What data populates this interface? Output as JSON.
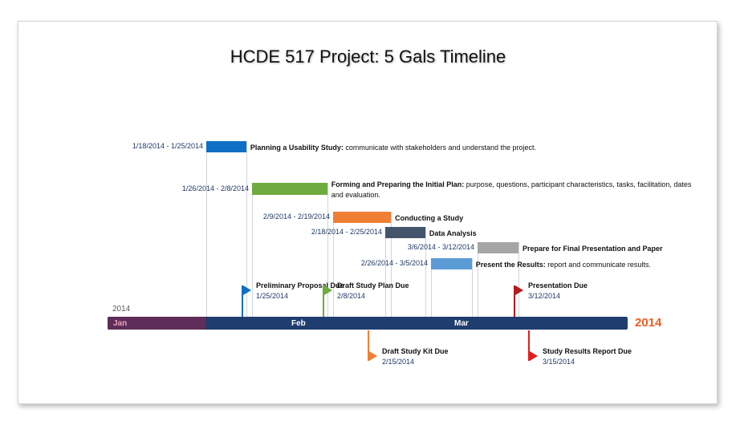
{
  "title": "HCDE 517 Project: 5 Gals Timeline",
  "year": "2014",
  "months": [
    "Jan",
    "Feb",
    "Mar"
  ],
  "colors": {
    "timeline": "#1f3d6e",
    "jan_segment": "#5e2e58",
    "year_accent": "#f05b1e"
  },
  "chart_data": {
    "type": "gantt",
    "x_axis": {
      "type": "date",
      "start": "2014-01-01",
      "end": "2014-03-31",
      "months": [
        "Jan",
        "Feb",
        "Mar"
      ]
    },
    "tasks": [
      {
        "dates": "1/18/2014 - 1/25/2014",
        "start": "2014-01-18",
        "end": "2014-01-25",
        "name": "Planning a Usability Study:",
        "desc": " communicate with stakeholders and understand the project.",
        "color": "#0f6fc6"
      },
      {
        "dates": "1/26/2014 - 2/8/2014",
        "start": "2014-01-26",
        "end": "2014-02-08",
        "name": "Forming and Preparing the Initial Plan:",
        "desc": " purpose, questions, participant characteristics, tasks, facilitation, dates and evaluation.",
        "color": "#6fab3e"
      },
      {
        "dates": "2/9/2014 - 2/19/2014",
        "start": "2014-02-09",
        "end": "2014-02-19",
        "name": "Conducting a Study",
        "desc": "",
        "color": "#f07f34"
      },
      {
        "dates": "2/18/2014 - 2/25/2014",
        "start": "2014-02-18",
        "end": "2014-02-25",
        "name": "Data Analysis",
        "desc": "",
        "color": "#44546a"
      },
      {
        "dates": "3/6/2014 - 3/12/2014",
        "start": "2014-03-06",
        "end": "2014-03-12",
        "name": "Prepare for Final Presentation and Paper",
        "desc": "",
        "color": "#a6a6a6"
      },
      {
        "dates": "2/26/2014 - 3/5/2014",
        "start": "2014-02-26",
        "end": "2014-03-05",
        "name": "Present the Results:",
        "desc": " report and communicate results.",
        "color": "#5b9bd5"
      }
    ],
    "milestones": [
      {
        "name": "Preliminary Proposal Due",
        "date": "1/25/2014",
        "position": "above",
        "color": "#0f6fc6"
      },
      {
        "name": "Draft Study Plan Due",
        "date": "2/8/2014",
        "position": "above",
        "color": "#6fab3e"
      },
      {
        "name": "Presentation Due",
        "date": "3/12/2014",
        "position": "above",
        "color": "#b31b1b"
      },
      {
        "name": "Draft Study Kit Due",
        "date": "2/15/2014",
        "position": "below",
        "color": "#f07f34"
      },
      {
        "name": "Study Results Report Due",
        "date": "3/15/2014",
        "position": "below",
        "color": "#e02020"
      }
    ]
  }
}
